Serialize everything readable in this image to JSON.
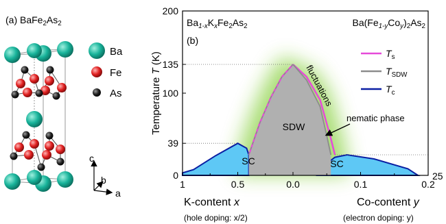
{
  "left_panel": {
    "label_prefix": "(a) BaFe",
    "label_sub1": "2",
    "label_mid": "As",
    "label_sub2": "2",
    "legend": [
      {
        "name": "Ba",
        "color": "#1aa38e"
      },
      {
        "name": "Fe",
        "color": "#d81f1f"
      },
      {
        "name": "As",
        "color": "#1a1a1a"
      }
    ],
    "axes": {
      "c": "c",
      "b": "b",
      "a": "a"
    }
  },
  "chart_data": {
    "type": "area",
    "panel_label": "(b)",
    "ylabel_text": "Temperature",
    "ylabel_var": "T",
    "ylabel_unit": "(K)",
    "y_ticks": [
      "0",
      "39",
      "100",
      "135",
      "200"
    ],
    "y_tick_values": [
      0,
      39,
      100,
      135,
      200
    ],
    "ylim": [
      0,
      200
    ],
    "x_ticks_left": [
      "1",
      "0.5",
      "0.0"
    ],
    "x_tick_values_left": [
      1,
      0.5,
      0.0
    ],
    "x_ticks_right": [
      "0.1",
      "0.2"
    ],
    "x_tick_values_right": [
      0.1,
      0.2
    ],
    "right_marker": "25",
    "xlabel_left_text": "K-content",
    "xlabel_left_var": "x",
    "xlabel_right_text": "Co-content",
    "xlabel_right_var": "y",
    "doping_left": "(hole doping: x/2)",
    "doping_right": "(electron doping: y)",
    "formula_left": {
      "p1": "Ba",
      "s1": "1-x",
      "p2": "K",
      "s2": "x",
      "p3": "Fe",
      "s3": "2",
      "p4": "As",
      "s4": "2"
    },
    "formula_right": {
      "p1": "Ba(Fe",
      "s1": "1-y",
      "p2": "Co",
      "s2": "y",
      "p3": ")",
      "s3": "2",
      "p4": "As",
      "s4": "2"
    },
    "region_labels": {
      "sdw": "SDW",
      "sc_left": "SC",
      "sc_right": "SC",
      "fluctuations": "fluctuations",
      "nematic": "nematic phase"
    },
    "legend": [
      {
        "var": "T",
        "sub": "s",
        "color": "#e64ad9"
      },
      {
        "var": "T",
        "sub": "SDW",
        "color": "#8c8c8c"
      },
      {
        "var": "T",
        "sub": "c",
        "color": "#0a1fa3"
      }
    ],
    "series": [
      {
        "name": "T_s",
        "side": "hole",
        "x": [
          0.4,
          0.3,
          0.2,
          0.1,
          0.0
        ],
        "y": [
          25,
          64,
          95,
          120,
          135
        ]
      },
      {
        "name": "T_s",
        "side": "electron",
        "x": [
          0.0,
          0.02,
          0.04,
          0.055,
          0.062
        ],
        "y": [
          135,
          120,
          92,
          48,
          25
        ]
      },
      {
        "name": "T_SDW",
        "side": "electron",
        "x": [
          0.0,
          0.02,
          0.04,
          0.05,
          0.056
        ],
        "y": [
          135,
          116,
          84,
          48,
          25
        ]
      },
      {
        "name": "T_c",
        "side": "hole",
        "x": [
          1.0,
          0.9,
          0.7,
          0.5,
          0.42,
          0.4
        ],
        "y": [
          3,
          7,
          24,
          39,
          33,
          25
        ]
      },
      {
        "name": "T_c",
        "side": "electron",
        "x": [
          0.035,
          0.062,
          0.08,
          0.12,
          0.17,
          0.185
        ],
        "y": [
          5,
          22,
          25,
          20,
          8,
          0
        ]
      }
    ]
  }
}
